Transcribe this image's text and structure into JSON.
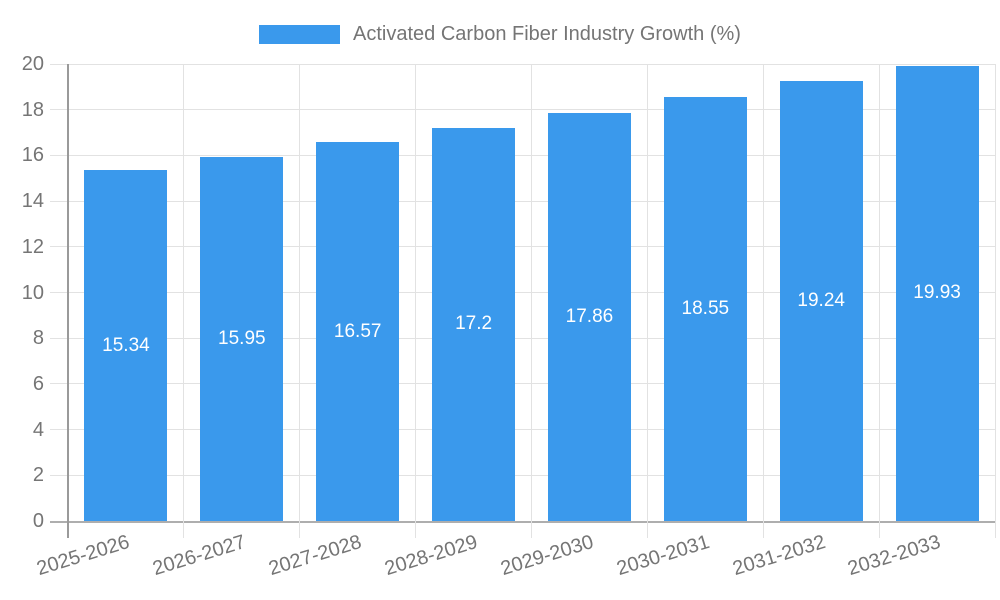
{
  "legend": {
    "label": "Activated Carbon Fiber Industry Growth (%)"
  },
  "chart_data": {
    "type": "bar",
    "title": "",
    "xlabel": "",
    "ylabel": "",
    "categories": [
      "2025-2026",
      "2026-2027",
      "2027-2028",
      "2028-2029",
      "2029-2030",
      "2030-2031",
      "2031-2032",
      "2032-2033"
    ],
    "series": [
      {
        "name": "Activated Carbon Fiber Industry Growth (%)",
        "values": [
          15.34,
          15.95,
          16.57,
          17.2,
          17.86,
          18.55,
          19.24,
          19.93
        ]
      }
    ],
    "bar_value_labels": [
      "15.34",
      "15.95",
      "16.57",
      "17.2",
      "17.86",
      "18.55",
      "19.24",
      "19.93"
    ],
    "ylim": [
      0,
      20
    ],
    "ytick_step": 2,
    "ytick_labels": [
      "0",
      "2",
      "4",
      "6",
      "8",
      "10",
      "12",
      "14",
      "16",
      "18",
      "20"
    ],
    "grid": true,
    "legend_position": "top",
    "colors": {
      "bar": "#3a99ec",
      "gridline": "#e2e2e2",
      "y_axis_line": "#9a9a9a",
      "x_axis_line": "#aeaeae",
      "tick_text": "#757575",
      "bar_label_text": "#ffffff",
      "background": "#ffffff"
    }
  }
}
